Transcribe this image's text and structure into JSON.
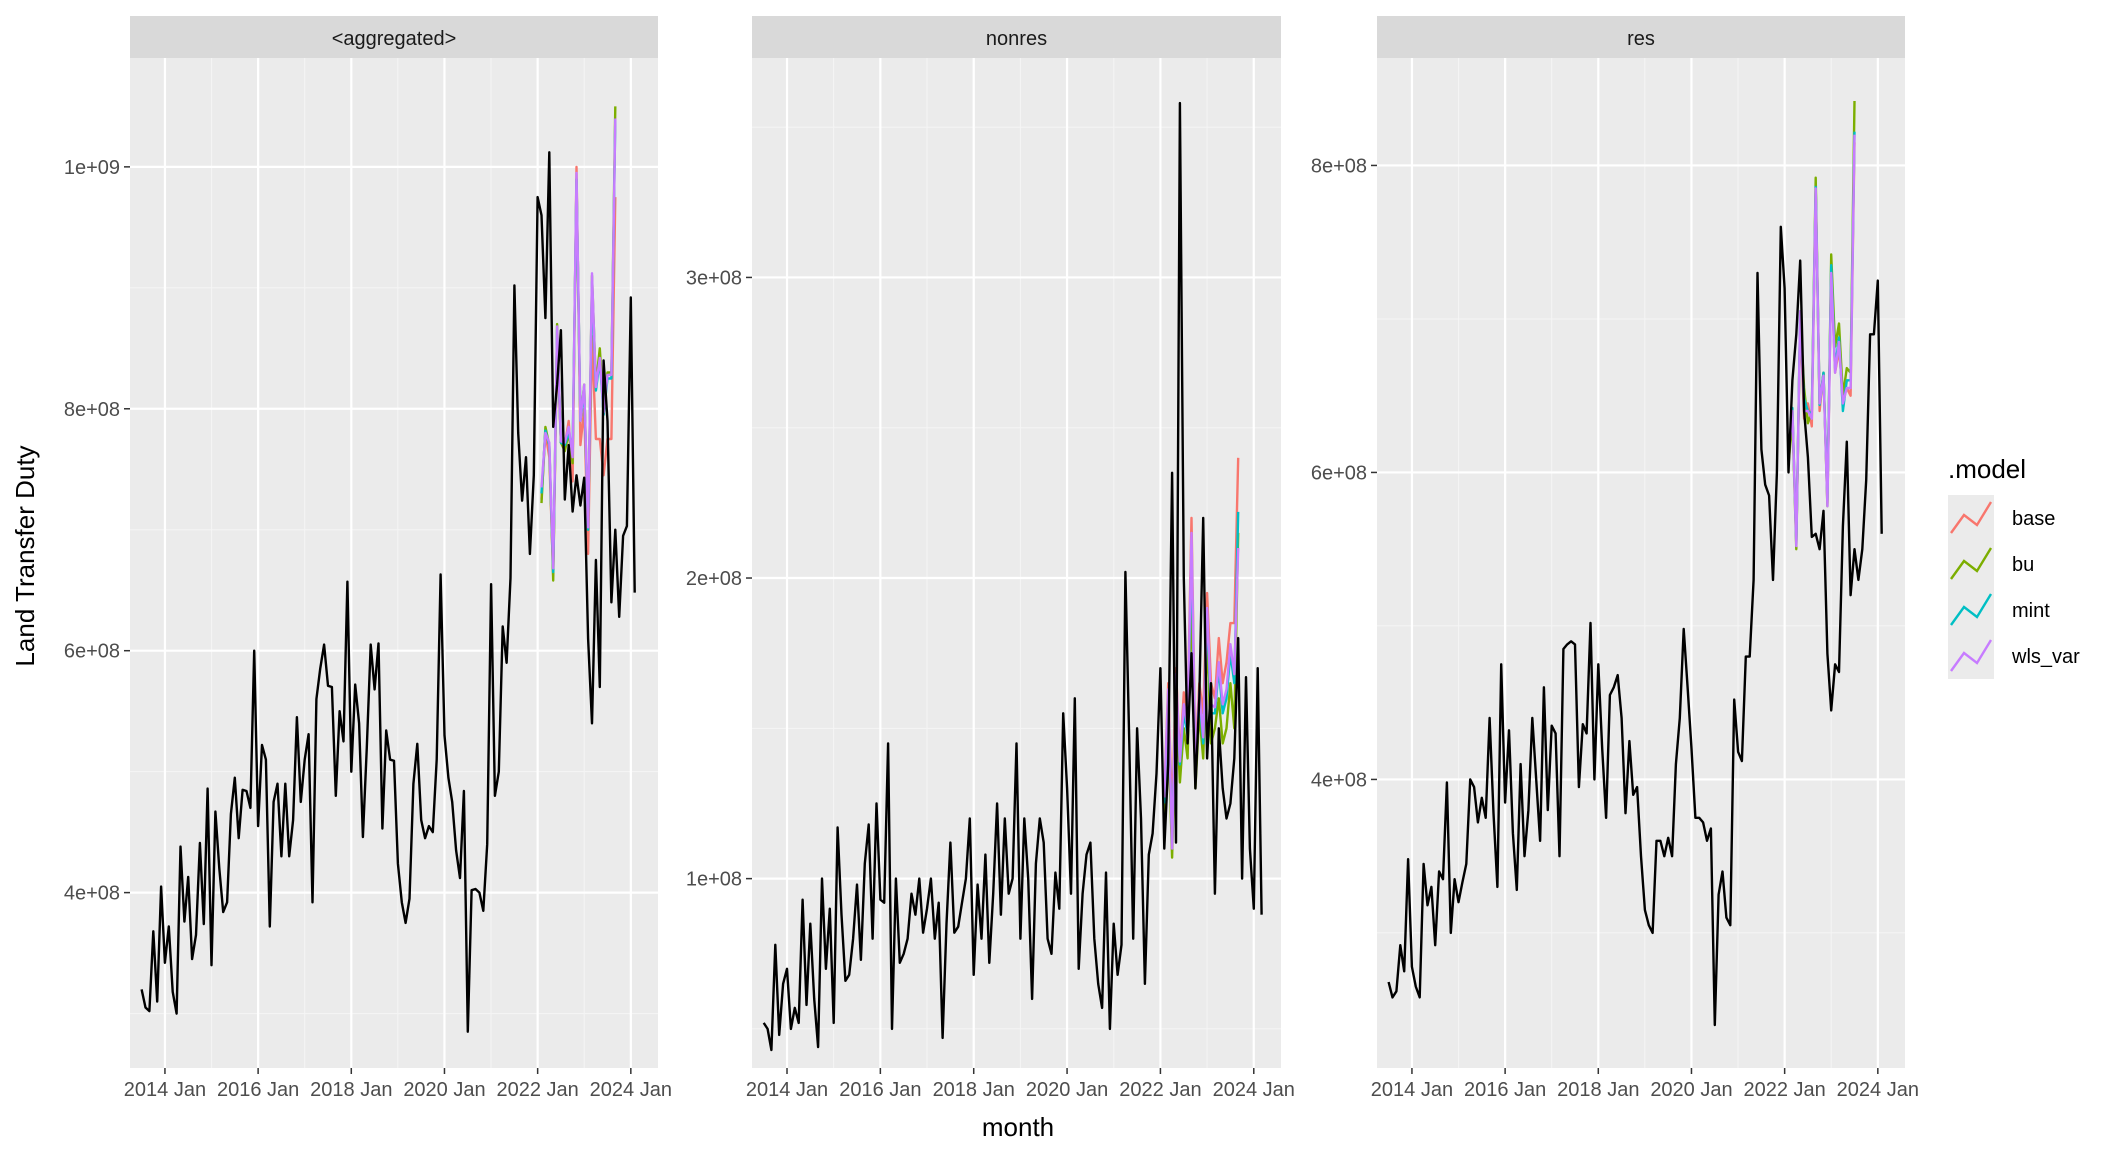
{
  "ylabel": "Land Transfer Duty",
  "xlabel": "month",
  "legend": {
    "title": ".model",
    "placement": "right",
    "items": [
      {
        "name": "base",
        "color": "#F8766D"
      },
      {
        "name": "bu",
        "color": "#7CAE00"
      },
      {
        "name": "mint",
        "color": "#00BFC4"
      },
      {
        "name": "wls_var",
        "color": "#C77CFF"
      }
    ]
  },
  "chart_data": [
    {
      "type": "line",
      "title": "<aggregated>",
      "x_ticks": [
        "2014 Jan",
        "2016 Jan",
        "2018 Jan",
        "2020 Jan",
        "2022 Jan",
        "2024 Jan"
      ],
      "y_ticks": [
        400000000,
        600000000,
        800000000,
        1000000000
      ],
      "y_tick_labels": [
        "4e+08",
        "6e+08",
        "8e+08",
        "1e+09"
      ],
      "xlim": [
        "2013-04",
        "2024-08"
      ],
      "ylim": [
        255000000,
        1090000000
      ],
      "grid": true,
      "actual": {
        "name": "",
        "start": "2013-07",
        "values": [
          320,
          305,
          302,
          368,
          310,
          405,
          342,
          372,
          318,
          300,
          438,
          376,
          413,
          345,
          365,
          441,
          374,
          486,
          340,
          467,
          420,
          384,
          392,
          465,
          495,
          445,
          485,
          484,
          470,
          600,
          455,
          522,
          510,
          372,
          475,
          490,
          430,
          490,
          430,
          460,
          545,
          475,
          510,
          531,
          392,
          560,
          585,
          605,
          571,
          570,
          480,
          550,
          525,
          657,
          500,
          572,
          540,
          446,
          520,
          605,
          568,
          606,
          453,
          534,
          510,
          509,
          424,
          392,
          375,
          395,
          490,
          523,
          460,
          445,
          455,
          450,
          510,
          663,
          530,
          495,
          475,
          435,
          412,
          484,
          285,
          402,
          403,
          400,
          385,
          440,
          655,
          480,
          500,
          620,
          590,
          660,
          902,
          780,
          724,
          760,
          680,
          745,
          975,
          960,
          875,
          1012,
          785,
          820,
          865,
          725,
          770,
          715,
          745,
          720,
          743,
          610,
          540,
          675,
          570,
          840,
          790,
          640,
          700,
          628,
          695,
          703,
          892,
          648
        ]
      },
      "series": [
        {
          "name": "base",
          "start": "2022-02",
          "values": [
            725,
            780,
            760,
            662,
            850,
            772,
            770,
            790,
            740,
            1000,
            770,
            800,
            680,
            860,
            775,
            775,
            745,
            775,
            775,
            975
          ]
        },
        {
          "name": "bu",
          "start": "2022-02",
          "values": [
            722,
            785,
            770,
            658,
            870,
            772,
            765,
            780,
            755,
            990,
            790,
            820,
            700,
            910,
            820,
            850,
            800,
            830,
            830,
            1050
          ]
        },
        {
          "name": "mint",
          "start": "2022-02",
          "values": [
            730,
            782,
            770,
            665,
            865,
            772,
            770,
            780,
            765,
            990,
            790,
            815,
            700,
            905,
            815,
            840,
            795,
            825,
            825,
            1040
          ]
        },
        {
          "name": "wls_var",
          "start": "2022-02",
          "values": [
            735,
            780,
            772,
            668,
            868,
            773,
            772,
            785,
            760,
            995,
            790,
            820,
            702,
            912,
            818,
            842,
            797,
            828,
            828,
            1040
          ]
        }
      ]
    },
    {
      "type": "line",
      "title": "nonres",
      "x_ticks": [
        "2014 Jan",
        "2016 Jan",
        "2018 Jan",
        "2020 Jan",
        "2022 Jan",
        "2024 Jan"
      ],
      "y_ticks": [
        100000000,
        200000000,
        300000000
      ],
      "y_tick_labels": [
        "1e+08",
        "2e+08",
        "3e+08"
      ],
      "xlim": [
        "2013-04",
        "2024-08"
      ],
      "ylim": [
        37000000,
        373000000
      ],
      "grid": true,
      "actual": {
        "name": "",
        "start": "2013-07",
        "values": [
          52,
          50,
          43,
          78,
          48,
          65,
          70,
          50,
          57,
          52,
          93,
          58,
          85,
          60,
          44,
          100,
          70,
          90,
          52,
          117,
          88,
          66,
          68,
          80,
          98,
          73,
          105,
          118,
          80,
          125,
          93,
          92,
          145,
          50,
          100,
          72,
          75,
          80,
          95,
          88,
          100,
          82,
          90,
          100,
          80,
          92,
          47,
          85,
          112,
          82,
          84,
          92,
          100,
          120,
          68,
          98,
          80,
          108,
          72,
          95,
          125,
          88,
          120,
          95,
          100,
          145,
          80,
          120,
          100,
          60,
          105,
          120,
          112,
          80,
          75,
          102,
          90,
          155,
          130,
          95,
          160,
          70,
          95,
          108,
          112,
          80,
          65,
          57,
          102,
          50,
          85,
          68,
          78,
          202,
          145,
          80,
          150,
          120,
          65,
          108,
          115,
          135,
          170,
          110,
          138,
          235,
          112,
          358,
          200,
          145,
          175,
          130,
          160,
          220,
          140,
          165,
          95,
          150,
          130,
          120,
          125,
          140,
          180,
          100,
          167,
          110,
          90,
          170,
          88
        ]
      },
      "series": [
        {
          "name": "base",
          "start": "2022-02",
          "values": [
            128,
            165,
            120,
            170,
            140,
            162,
            155,
            220,
            140,
            165,
            155,
            195,
            165,
            160,
            180,
            165,
            172,
            185,
            185,
            240
          ]
        },
        {
          "name": "bu",
          "start": "2022-02",
          "values": [
            115,
            150,
            107,
            160,
            132,
            150,
            140,
            195,
            130,
            155,
            140,
            180,
            145,
            150,
            160,
            145,
            150,
            165,
            150,
            215
          ]
        },
        {
          "name": "mint",
          "start": "2022-02",
          "values": [
            125,
            160,
            112,
            165,
            138,
            155,
            148,
            210,
            135,
            160,
            145,
            188,
            155,
            155,
            170,
            155,
            160,
            175,
            165,
            222
          ]
        },
        {
          "name": "wls_var",
          "start": "2022-02",
          "values": [
            127,
            163,
            110,
            168,
            139,
            158,
            150,
            215,
            137,
            162,
            147,
            190,
            158,
            157,
            172,
            158,
            163,
            178,
            168,
            210
          ]
        }
      ]
    },
    {
      "type": "line",
      "title": "res",
      "x_ticks": [
        "2014 Jan",
        "2016 Jan",
        "2018 Jan",
        "2020 Jan",
        "2022 Jan",
        "2024 Jan"
      ],
      "y_ticks": [
        400000000,
        600000000,
        800000000
      ],
      "y_tick_labels": [
        "4e+08",
        "6e+08",
        "8e+08"
      ],
      "xlim": [
        "2013-04",
        "2024-08"
      ],
      "ylim": [
        212000000,
        870000000
      ],
      "grid": true,
      "actual": {
        "name": "",
        "start": "2013-07",
        "values": [
          268,
          258,
          262,
          292,
          275,
          348,
          278,
          265,
          258,
          345,
          318,
          330,
          292,
          340,
          335,
          398,
          300,
          335,
          320,
          333,
          345,
          400,
          395,
          372,
          388,
          375,
          440,
          378,
          330,
          475,
          385,
          432,
          365,
          328,
          410,
          350,
          380,
          440,
          400,
          360,
          460,
          380,
          435,
          430,
          350,
          485,
          488,
          490,
          488,
          395,
          436,
          430,
          502,
          400,
          475,
          420,
          375,
          455,
          460,
          468,
          440,
          378,
          425,
          390,
          395,
          350,
          315,
          305,
          300,
          360,
          360,
          350,
          362,
          350,
          410,
          440,
          498,
          460,
          420,
          375,
          375,
          372,
          360,
          368,
          240,
          325,
          340,
          310,
          305,
          452,
          418,
          412,
          480,
          480,
          530,
          730,
          615,
          592,
          585,
          530,
          600,
          760,
          720,
          600,
          660,
          690,
          738,
          640,
          610,
          558,
          560,
          550,
          575,
          482,
          445,
          475,
          470,
          565,
          620,
          520,
          550,
          530,
          550,
          595,
          690,
          690,
          725,
          560
        ]
      },
      "series": [
        {
          "name": "base",
          "start": "2022-02",
          "values": [
            610,
            640,
            555,
            700,
            635,
            645,
            630,
            785,
            640,
            665,
            580,
            730,
            665,
            680,
            650,
            655,
            650,
            815
          ]
        },
        {
          "name": "bu",
          "start": "2022-02",
          "values": [
            605,
            635,
            550,
            702,
            655,
            632,
            640,
            792,
            645,
            665,
            578,
            742,
            682,
            697,
            650,
            668,
            665,
            842
          ]
        },
        {
          "name": "mint",
          "start": "2022-02",
          "values": [
            612,
            642,
            553,
            705,
            648,
            640,
            638,
            786,
            644,
            665,
            582,
            735,
            668,
            688,
            640,
            660,
            660,
            822
          ]
        },
        {
          "name": "wls_var",
          "start": "2022-02",
          "values": [
            612,
            640,
            552,
            705,
            640,
            640,
            635,
            785,
            645,
            663,
            578,
            730,
            665,
            685,
            645,
            655,
            655,
            820
          ]
        }
      ]
    }
  ]
}
